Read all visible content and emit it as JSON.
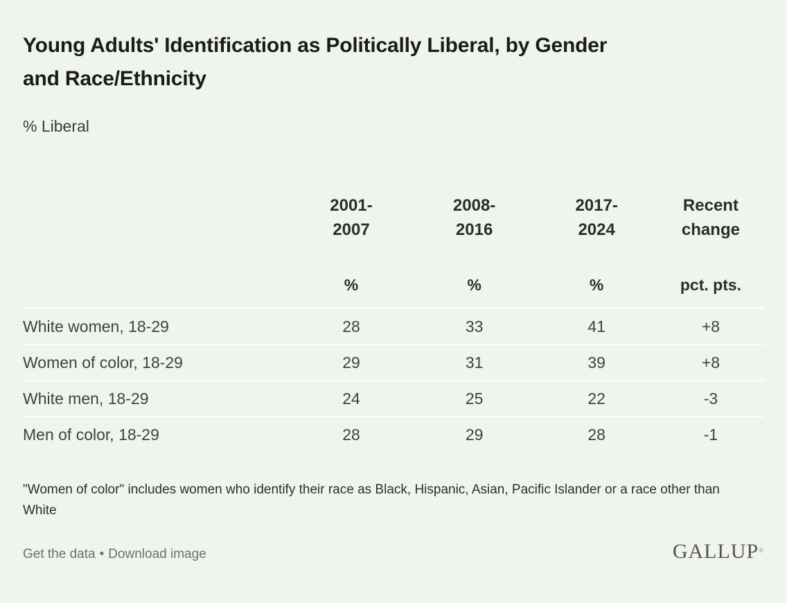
{
  "colors": {
    "background": "#f0f4ee",
    "divider": "#fbfdf9",
    "title_text": "#1b1b19",
    "header_text": "#2b2d29",
    "body_text": "#3f413d",
    "muted_text": "#6c706a",
    "logo_color": "#56544f"
  },
  "header": {
    "title_line1": "Young Adults' Identification as Politically Liberal, by Gender",
    "title_line2": "and Race/Ethnicity",
    "subtitle": "% Liberal"
  },
  "chart_data": {
    "type": "table",
    "title": "Young Adults' Identification as Politically Liberal, by Gender and Race/Ethnicity",
    "subtitle": "% Liberal",
    "categories": [
      "2001-2007",
      "2008-2016",
      "2017-2024"
    ],
    "change_column": "Recent change",
    "units": [
      "%",
      "%",
      "%",
      "pct. pts."
    ],
    "rows": [
      {
        "label": "White women, 18-29",
        "values": [
          28,
          33,
          41
        ],
        "change": "+8"
      },
      {
        "label": "Women of color, 18-29",
        "values": [
          29,
          31,
          39
        ],
        "change": "+8"
      },
      {
        "label": "White men, 18-29",
        "values": [
          24,
          25,
          22
        ],
        "change": "-3"
      },
      {
        "label": "Men of color, 18-29",
        "values": [
          28,
          29,
          28
        ],
        "change": "-1"
      }
    ]
  },
  "footnote": "\"Women of color\" includes women who identify their race as Black, Hispanic, Asian, Pacific Islander or a race other than White",
  "footer": {
    "get_the_data": "Get the data",
    "separator": "•",
    "download_image": "Download image",
    "logo": "GALLUP",
    "logo_mark": "®"
  }
}
